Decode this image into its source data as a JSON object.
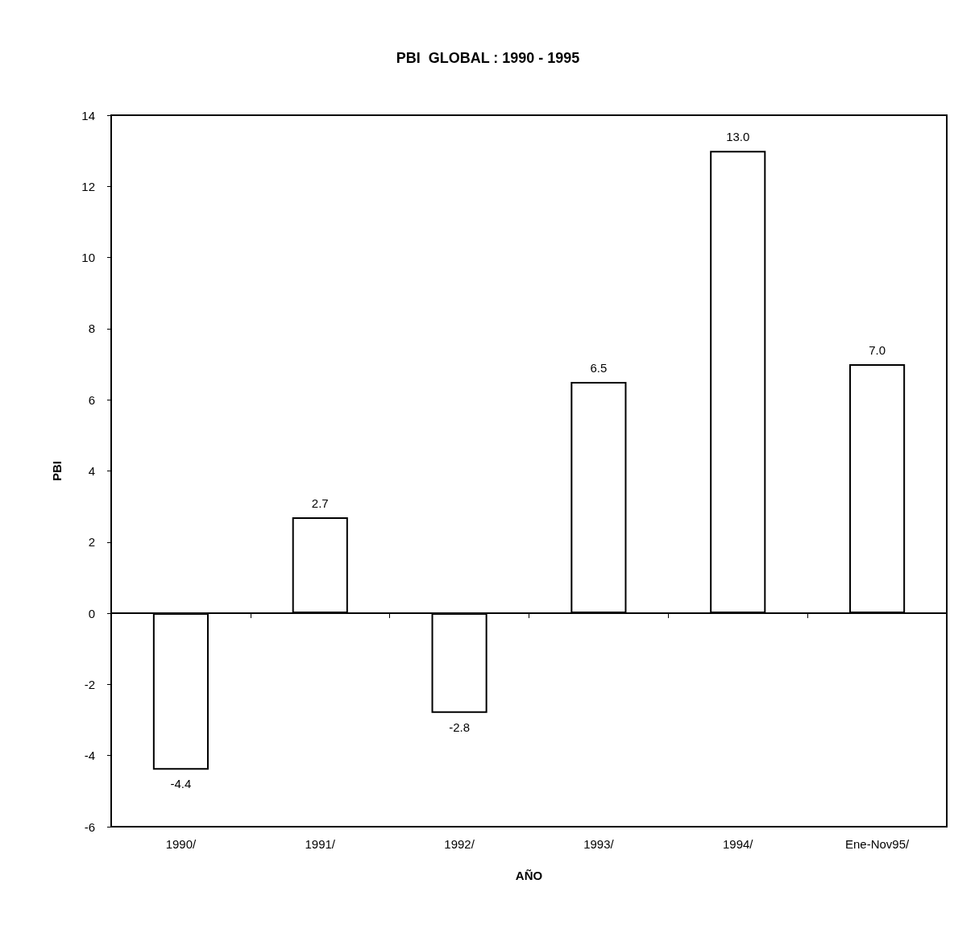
{
  "chart_data": {
    "type": "bar",
    "title": "PBI  GLOBAL : 1990 - 1995",
    "xlabel": "AÑO",
    "ylabel": "PBI",
    "categories": [
      "1990/",
      "1991/",
      "1992/",
      "1993/",
      "1994/",
      "Ene-Nov95/"
    ],
    "values": [
      -4.4,
      2.7,
      -2.8,
      6.5,
      13.0,
      7.0
    ],
    "value_labels": [
      "-4.4",
      "2.7",
      "-2.8",
      "6.5",
      "13.0",
      "7.0"
    ],
    "color": "#ffffff",
    "ylim": [
      -6,
      14
    ],
    "yticks": [
      -6,
      -4,
      -2,
      0,
      2,
      4,
      6,
      8,
      10,
      12,
      14
    ]
  }
}
